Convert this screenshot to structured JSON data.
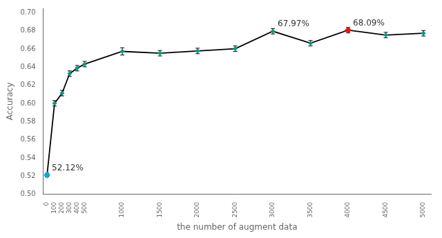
{
  "chart_data": {
    "type": "line",
    "xlabel": "the number of augment data",
    "ylabel": "Accuracy",
    "x": [
      0,
      100,
      200,
      300,
      400,
      500,
      1000,
      1500,
      2000,
      2500,
      3000,
      3500,
      4000,
      4500,
      5000
    ],
    "series": [
      {
        "color": "#000000",
        "line_style": "solid",
        "marker": "diamond",
        "colors": [
          "#00aadd",
          "#009988",
          "#009988",
          "#009988",
          "#009988",
          "#009988",
          "#009988",
          "#009988",
          "#009988",
          "#009988",
          "#009988",
          "#009988",
          "#ee1100",
          "#009988",
          "#009988"
        ],
        "values": [
          0.5212,
          0.6003,
          0.6115,
          0.633,
          0.639,
          0.6435,
          0.6575,
          0.6555,
          0.658,
          0.6605,
          0.6797,
          0.6665,
          0.6809,
          0.6755,
          0.6775
        ],
        "yerr": [
          0.002,
          0.003,
          0.003,
          0.003,
          0.003,
          0.003,
          0.004,
          0.003,
          0.003,
          0.003,
          0.003,
          0.003,
          0.003,
          0.003,
          0.003
        ]
      }
    ],
    "annotations": [
      {
        "x": 0,
        "y": 0.5212,
        "text": "52.12%"
      },
      {
        "x": 3000,
        "y": 0.6797,
        "text": "67.97%"
      },
      {
        "x": 4000,
        "y": 0.6809,
        "text": "68.09%"
      }
    ],
    "xlim": [
      -50,
      5100
    ],
    "xticks": [
      0,
      100,
      200,
      300,
      400,
      500,
      1000,
      1500,
      2000,
      2500,
      3000,
      3500,
      4000,
      4500,
      5000
    ],
    "ylim": [
      0.5,
      0.705
    ],
    "yticks": [
      {
        "value": 0.5,
        "label": "0.50"
      },
      0.52,
      0.54,
      0.56,
      0.58,
      {
        "value": 0.6,
        "label": "0.60"
      },
      0.62,
      0.64,
      0.66,
      0.68,
      {
        "value": 0.7,
        "label": "0.70"
      }
    ],
    "grid": false
  }
}
